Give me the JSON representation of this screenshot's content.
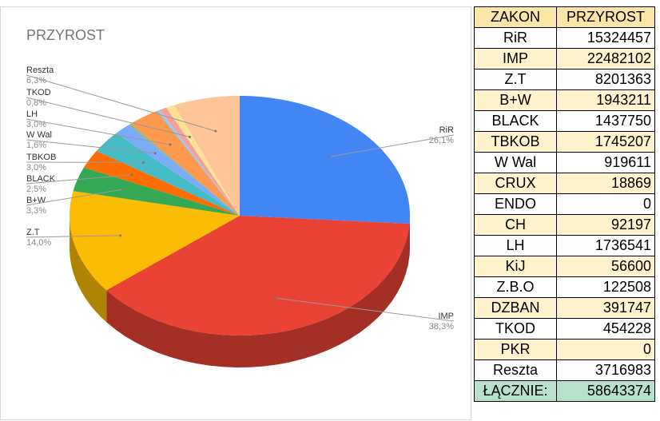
{
  "chart_data": {
    "type": "pie",
    "title": "PRZYROST",
    "categories": [
      "RiR",
      "IMP",
      "Z.T",
      "B+W",
      "BLACK",
      "TBKOB",
      "W Wal",
      null,
      null,
      "LH",
      null,
      null,
      null,
      "TKOD",
      "Reszta"
    ],
    "values": [
      26.1,
      38.3,
      14.0,
      3.3,
      2.5,
      3.0,
      1.6,
      0.03,
      0.2,
      3.0,
      0.1,
      0.2,
      0.7,
      0.8,
      6.3
    ],
    "value_labels": [
      "26,1%",
      "38,3%",
      "14,0%",
      "3,3%",
      "2,5%",
      "3,0%",
      "1,6%",
      null,
      null,
      "3,0%",
      null,
      null,
      null,
      "0,8%",
      "6,3%"
    ],
    "colors": [
      "#4285f4",
      "#ea4335",
      "#fbbc04",
      "#34a853",
      "#ff6d01",
      "#46bdc6",
      "#7baaf7",
      "#f07b72",
      "#71c287",
      "#ff994d",
      "#6fcdd6",
      "#a0c3ff",
      "#f4a19a",
      "#fde293",
      "#ffc599"
    ],
    "three_d": true
  },
  "table": {
    "header": [
      "ZAKON",
      "PRZYROST"
    ],
    "rows": [
      [
        "RiR",
        15324457
      ],
      [
        "IMP",
        22482102
      ],
      [
        "Z.T",
        8201363
      ],
      [
        "B+W",
        1943211
      ],
      [
        "BLACK",
        1437750
      ],
      [
        "TBKOB",
        1745207
      ],
      [
        "W Wal",
        919611
      ],
      [
        "CRUX",
        18869
      ],
      [
        "ENDO",
        0
      ],
      [
        "CH",
        92197
      ],
      [
        "LH",
        1736541
      ],
      [
        "KiJ",
        56600
      ],
      [
        "Z.B.O",
        122508
      ],
      [
        "DZBAN",
        391747
      ],
      [
        "TKOD",
        454228
      ],
      [
        "PKR",
        0
      ],
      [
        "Reszta",
        3716983
      ]
    ],
    "total": [
      "ŁĄCZNIE:",
      58643374
    ]
  }
}
